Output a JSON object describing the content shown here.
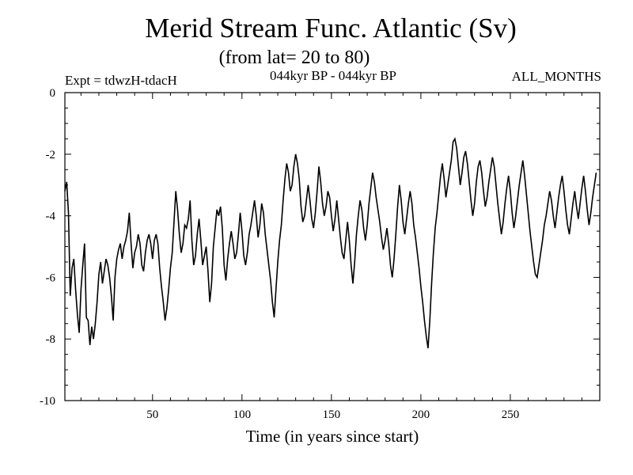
{
  "chart_data": {
    "type": "line",
    "title": "Merid Stream Func. Atlantic (Sv)",
    "subtitle": "(from lat= 20 to 80)",
    "annotations": {
      "left": "Expt = tdwzH-tdacH",
      "center": "044kyr BP - 044kyr BP",
      "right": "ALL_MONTHS"
    },
    "xlabel": "Time (in years since start)",
    "ylabel": "",
    "xlim": [
      1,
      300
    ],
    "ylim": [
      -10,
      0
    ],
    "x_ticks": [
      50,
      100,
      150,
      200,
      250
    ],
    "y_ticks": [
      0,
      -2,
      -4,
      -6,
      -8,
      -10
    ],
    "x_tick_labels": [
      "50",
      "100",
      "150",
      "200",
      "250"
    ],
    "y_tick_labels": [
      "0",
      "-2",
      "-4",
      "-6",
      "-8",
      "-10"
    ],
    "grid": false,
    "line_color": "#000000",
    "x_start": 1,
    "values": [
      -3.2,
      -2.9,
      -3.9,
      -6.6,
      -5.7,
      -5.4,
      -6.4,
      -7.2,
      -7.8,
      -6.4,
      -5.6,
      -4.9,
      -7.3,
      -7.4,
      -8.2,
      -7.6,
      -8.0,
      -7.5,
      -6.8,
      -5.9,
      -5.5,
      -6.2,
      -5.8,
      -5.4,
      -5.6,
      -6.0,
      -6.6,
      -7.4,
      -6.0,
      -5.4,
      -5.1,
      -4.9,
      -5.4,
      -5.0,
      -4.8,
      -4.5,
      -3.9,
      -4.9,
      -5.7,
      -5.2,
      -5.0,
      -4.6,
      -4.9,
      -5.6,
      -5.8,
      -5.2,
      -4.8,
      -4.6,
      -4.9,
      -5.4,
      -4.8,
      -4.6,
      -4.9,
      -5.7,
      -6.3,
      -6.8,
      -7.4,
      -7.0,
      -6.4,
      -5.7,
      -5.2,
      -4.2,
      -3.2,
      -3.8,
      -4.6,
      -5.2,
      -4.9,
      -4.3,
      -4.4,
      -4.1,
      -3.5,
      -4.8,
      -5.6,
      -5.3,
      -4.6,
      -4.1,
      -4.8,
      -5.6,
      -5.3,
      -5.0,
      -5.8,
      -6.8,
      -6.2,
      -5.0,
      -4.4,
      -3.8,
      -4.0,
      -3.7,
      -4.4,
      -5.6,
      -6.1,
      -5.4,
      -4.9,
      -4.5,
      -4.9,
      -5.4,
      -5.2,
      -4.6,
      -3.9,
      -4.5,
      -5.3,
      -5.6,
      -5.2,
      -4.6,
      -4.3,
      -3.9,
      -3.5,
      -4.0,
      -4.7,
      -4.3,
      -3.6,
      -3.9,
      -4.6,
      -5.1,
      -5.6,
      -6.1,
      -6.8,
      -7.3,
      -6.4,
      -5.5,
      -4.8,
      -4.3,
      -3.5,
      -2.8,
      -2.3,
      -2.6,
      -3.2,
      -3.0,
      -2.4,
      -2.0,
      -2.3,
      -2.8,
      -3.7,
      -4.2,
      -4.0,
      -3.5,
      -3.0,
      -3.5,
      -4.1,
      -4.4,
      -3.9,
      -3.2,
      -2.4,
      -2.9,
      -3.6,
      -4.0,
      -3.7,
      -3.2,
      -3.4,
      -4.0,
      -4.5,
      -4.1,
      -3.5,
      -4.1,
      -4.7,
      -5.2,
      -5.4,
      -4.8,
      -4.2,
      -4.8,
      -5.6,
      -6.2,
      -5.5,
      -4.6,
      -4.0,
      -3.5,
      -3.8,
      -4.4,
      -4.8,
      -4.3,
      -3.6,
      -3.1,
      -2.6,
      -2.9,
      -3.4,
      -3.8,
      -4.2,
      -4.7,
      -5.1,
      -4.8,
      -4.4,
      -4.9,
      -5.6,
      -6.0,
      -5.4,
      -4.6,
      -3.7,
      -3.0,
      -3.5,
      -4.2,
      -4.6,
      -4.1,
      -3.6,
      -3.2,
      -3.6,
      -4.3,
      -4.7,
      -5.2,
      -5.7,
      -6.3,
      -6.8,
      -7.4,
      -7.9,
      -8.3,
      -7.4,
      -6.2,
      -5.2,
      -4.4,
      -3.9,
      -3.3,
      -2.7,
      -2.3,
      -2.8,
      -3.4,
      -3.0,
      -2.6,
      -2.2,
      -1.6,
      -1.5,
      -1.8,
      -2.4,
      -3.0,
      -2.6,
      -2.1,
      -1.9,
      -2.3,
      -2.9,
      -3.5,
      -4.0,
      -3.6,
      -2.9,
      -2.4,
      -2.2,
      -2.6,
      -3.2,
      -3.7,
      -3.4,
      -2.9,
      -2.5,
      -2.1,
      -2.4,
      -3.0,
      -3.6,
      -4.1,
      -4.6,
      -4.2,
      -3.6,
      -3.1,
      -2.7,
      -3.2,
      -3.9,
      -4.4,
      -4.0,
      -3.5,
      -3.0,
      -2.6,
      -2.2,
      -2.7,
      -3.3,
      -3.9,
      -4.5,
      -5.0,
      -5.5,
      -5.9,
      -6.0,
      -5.6,
      -5.2,
      -4.8,
      -4.3,
      -4.0,
      -3.6,
      -3.2,
      -3.5,
      -4.0,
      -4.4,
      -3.9,
      -3.4,
      -3.0,
      -2.7,
      -3.2,
      -3.8,
      -4.3,
      -4.6,
      -4.1,
      -3.6,
      -3.2,
      -3.7,
      -4.1,
      -3.6,
      -3.1,
      -2.7,
      -3.2,
      -3.8,
      -4.3,
      -3.9,
      -3.4,
      -3.0,
      -2.6
    ]
  }
}
